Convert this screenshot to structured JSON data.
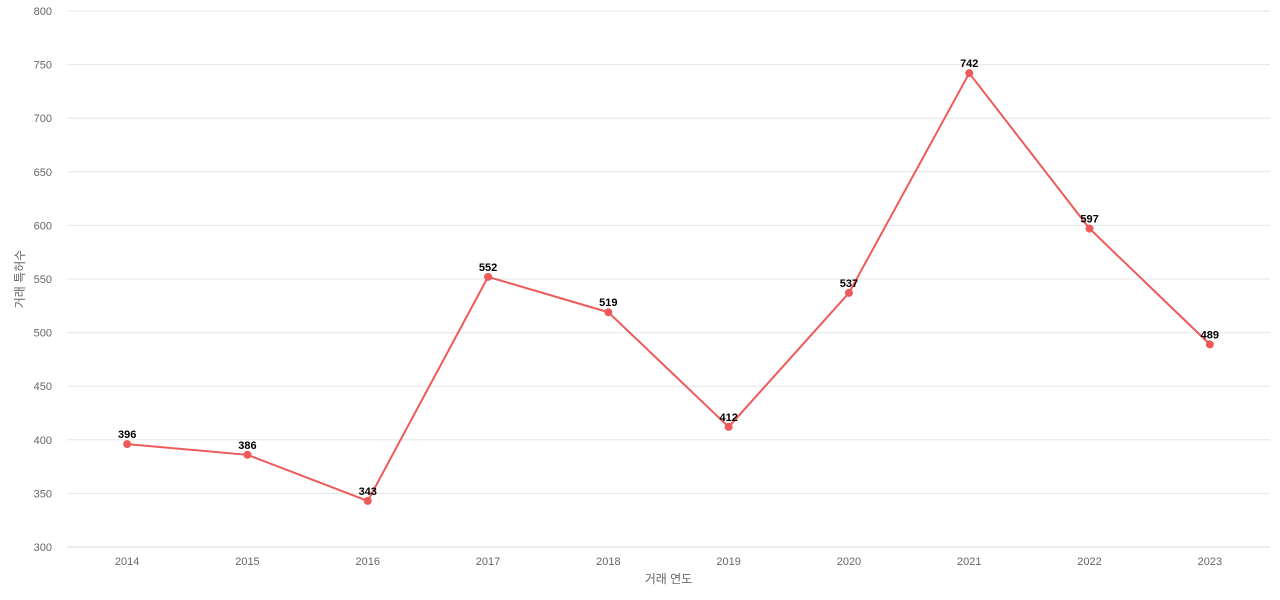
{
  "chart_data": {
    "type": "line",
    "title": "",
    "xlabel": "거래 연도",
    "ylabel": "거래 특허수",
    "categories": [
      "2014",
      "2015",
      "2016",
      "2017",
      "2018",
      "2019",
      "2020",
      "2021",
      "2022",
      "2023"
    ],
    "values": [
      396,
      386,
      343,
      552,
      519,
      412,
      537,
      742,
      597,
      489
    ],
    "ylim": [
      300,
      800
    ],
    "yticks": [
      300,
      350,
      400,
      450,
      500,
      550,
      600,
      650,
      700,
      750,
      800
    ],
    "grid": true,
    "legend": "none",
    "color": "#ee5a5a"
  }
}
